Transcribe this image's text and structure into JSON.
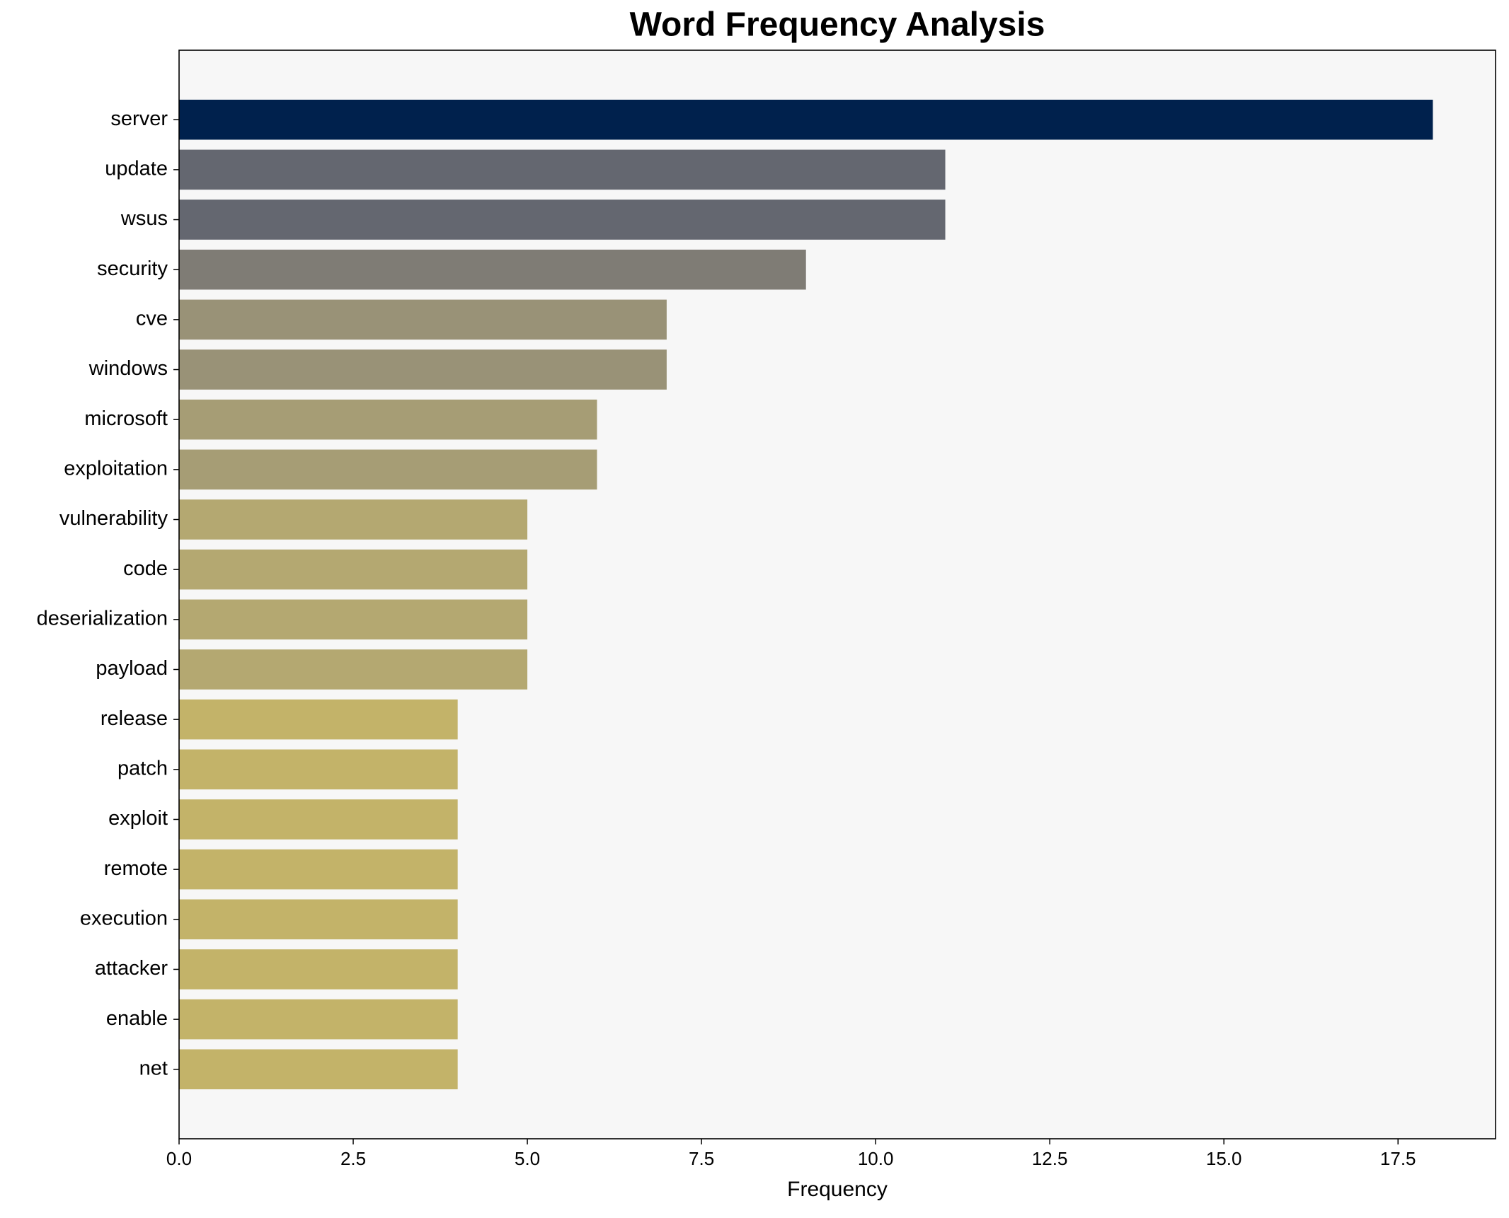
{
  "chart_data": {
    "type": "barh",
    "title": "Word Frequency Analysis",
    "xlabel": "Frequency",
    "categories": [
      "server",
      "update",
      "wsus",
      "security",
      "cve",
      "windows",
      "microsoft",
      "exploitation",
      "vulnerability",
      "code",
      "deserialization",
      "payload",
      "release",
      "patch",
      "exploit",
      "remote",
      "execution",
      "attacker",
      "enable",
      "net"
    ],
    "values": [
      18,
      11,
      11,
      9,
      7,
      7,
      6,
      6,
      5,
      5,
      5,
      5,
      4,
      4,
      4,
      4,
      4,
      4,
      4,
      4
    ],
    "colors": [
      "#00214d",
      "#646770",
      "#646770",
      "#7f7c75",
      "#999277",
      "#999277",
      "#a69d75",
      "#a69d75",
      "#b4a871",
      "#b4a871",
      "#b4a871",
      "#b4a871",
      "#c3b369",
      "#c3b369",
      "#c3b369",
      "#c3b369",
      "#c3b369",
      "#c3b369",
      "#c3b369",
      "#c3b369"
    ],
    "xlim": [
      0,
      18.9
    ],
    "xticks": [
      {
        "value": 0,
        "label": "0.0"
      },
      2.5,
      {
        "value": 5,
        "label": "5.0"
      },
      7.5,
      {
        "value": 10,
        "label": "10.0"
      },
      12.5,
      {
        "value": 15,
        "label": "15.0"
      },
      17.5
    ],
    "background": "#f7f7f7"
  }
}
